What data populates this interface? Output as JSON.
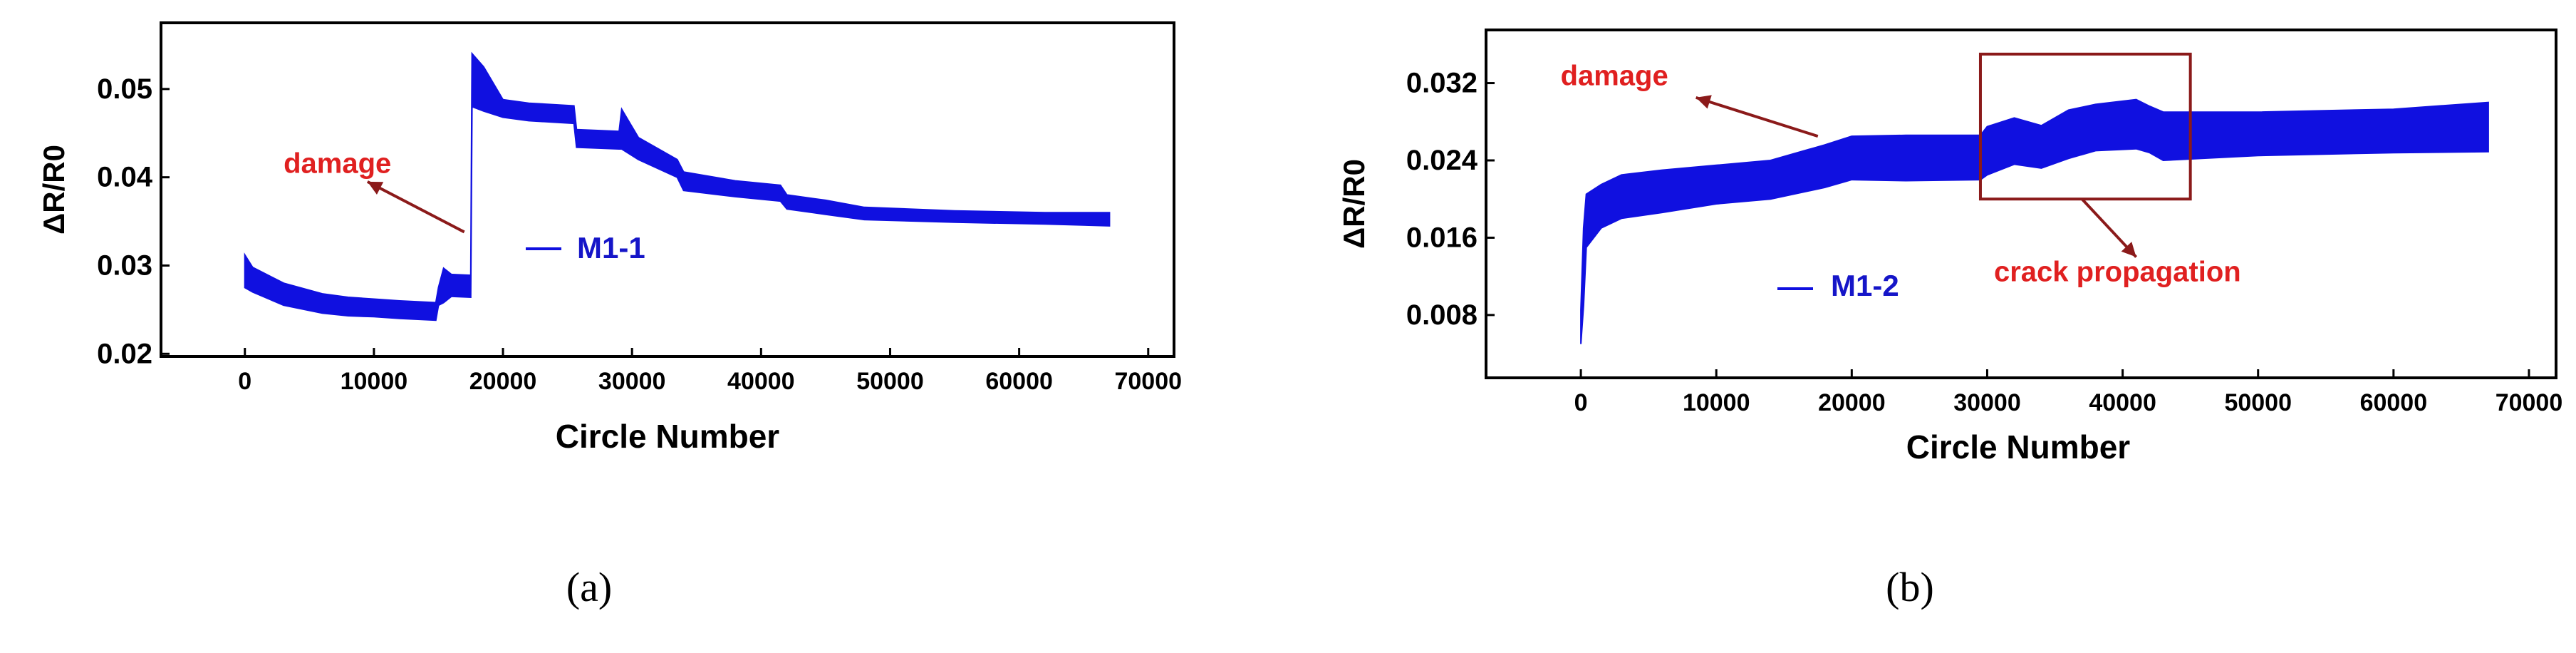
{
  "chart_data": [
    {
      "type": "line",
      "panel_label": "(a)",
      "xlabel": "Circle Number",
      "ylabel": "ΔR/R0",
      "xlim": [
        -6500,
        72000
      ],
      "ylim": [
        0.0197,
        0.0575
      ],
      "x_ticks": [
        0,
        10000,
        20000,
        30000,
        40000,
        50000,
        60000,
        70000
      ],
      "y_ticks": [
        0.02,
        0.03,
        0.04,
        0.05
      ],
      "y_tick_labels": [
        "0.02",
        "0.03",
        "0.04",
        "0.05"
      ],
      "grid": false,
      "legend": {
        "position": "center",
        "entries": [
          "M1-1"
        ]
      },
      "series": [
        {
          "name": "M1-1",
          "color": "#1010e0",
          "band": [
            [
              0,
              0.0275,
              0.0312
            ],
            [
              600,
              0.027,
              0.0298
            ],
            [
              3000,
              0.0255,
              0.028
            ],
            [
              6000,
              0.0246,
              0.0268
            ],
            [
              8000,
              0.0243,
              0.0264
            ],
            [
              10000,
              0.0242,
              0.0262
            ],
            [
              12000,
              0.024,
              0.026
            ],
            [
              14800,
              0.0238,
              0.0258
            ],
            [
              15000,
              0.0255,
              0.0275
            ],
            [
              15400,
              0.0258,
              0.0297
            ],
            [
              16000,
              0.0265,
              0.029
            ],
            [
              17500,
              0.0264,
              0.0289
            ],
            [
              17600,
              0.048,
              0.054
            ],
            [
              18500,
              0.0475,
              0.0525
            ],
            [
              20000,
              0.0468,
              0.0488
            ],
            [
              22000,
              0.0464,
              0.0484
            ],
            [
              25500,
              0.0461,
              0.0481
            ],
            [
              25700,
              0.0434,
              0.0454
            ],
            [
              29000,
              0.0432,
              0.0452
            ],
            [
              29200,
              0.0432,
              0.0477
            ],
            [
              30500,
              0.042,
              0.0445
            ],
            [
              33500,
              0.04,
              0.042
            ],
            [
              34000,
              0.0385,
              0.0406
            ],
            [
              38000,
              0.0378,
              0.0396
            ],
            [
              41500,
              0.0373,
              0.0391
            ],
            [
              42000,
              0.0364,
              0.038
            ],
            [
              45000,
              0.0358,
              0.0374
            ],
            [
              48000,
              0.0352,
              0.0366
            ],
            [
              55000,
              0.0349,
              0.0362
            ],
            [
              62000,
              0.0347,
              0.036
            ],
            [
              67000,
              0.0345,
              0.036
            ]
          ]
        }
      ],
      "annotations": [
        {
          "text": "damage",
          "x": 3000,
          "y": 0.0405,
          "color": "#e02020",
          "arrow_from": [
            17000,
            0.0338
          ],
          "arrow_to": [
            9500,
            0.0395
          ]
        }
      ]
    },
    {
      "type": "line",
      "panel_label": "(b)",
      "xlabel": "Circle Number",
      "ylabel": "ΔR/R0",
      "xlim": [
        -7000,
        72000
      ],
      "ylim": [
        0.0015,
        0.0375
      ],
      "x_ticks": [
        0,
        10000,
        20000,
        30000,
        40000,
        50000,
        60000,
        70000
      ],
      "y_ticks": [
        0.008,
        0.016,
        0.024,
        0.032
      ],
      "y_tick_labels": [
        "0.008",
        "0.016",
        "0.024",
        "0.032"
      ],
      "grid": false,
      "legend": {
        "position": "center-left",
        "entries": [
          "M1-2"
        ]
      },
      "series": [
        {
          "name": "M1-2",
          "color": "#1010e0",
          "band": [
            [
              0,
              0.005,
              0.0085
            ],
            [
              200,
              0.009,
              0.017
            ],
            [
              400,
              0.015,
              0.0205
            ],
            [
              1500,
              0.017,
              0.0215
            ],
            [
              3000,
              0.018,
              0.0225
            ],
            [
              6000,
              0.0186,
              0.023
            ],
            [
              10000,
              0.0195,
              0.0235
            ],
            [
              14000,
              0.02,
              0.024
            ],
            [
              18000,
              0.0212,
              0.0256
            ],
            [
              20000,
              0.022,
              0.0265
            ],
            [
              24000,
              0.0219,
              0.0266
            ],
            [
              29500,
              0.022,
              0.0266
            ],
            [
              30000,
              0.0225,
              0.0275
            ],
            [
              32000,
              0.0236,
              0.0284
            ],
            [
              34000,
              0.0232,
              0.0276
            ],
            [
              36000,
              0.0242,
              0.0292
            ],
            [
              38000,
              0.025,
              0.0298
            ],
            [
              41000,
              0.0252,
              0.0303
            ],
            [
              42000,
              0.0248,
              0.0296
            ],
            [
              43000,
              0.024,
              0.029
            ],
            [
              50000,
              0.0245,
              0.029
            ],
            [
              60000,
              0.0248,
              0.0293
            ],
            [
              67000,
              0.0249,
              0.03
            ]
          ]
        }
      ],
      "annotations": [
        {
          "text": "damage",
          "x": -1500,
          "y": 0.0318,
          "color": "#e02020",
          "arrow_from": [
            17500,
            0.0265
          ],
          "arrow_to": [
            8500,
            0.0305
          ]
        },
        {
          "text": "crack propagation",
          "x": 30500,
          "y": 0.0115,
          "color": "#e02020",
          "arrow_from": [
            37000,
            0.02
          ],
          "arrow_to": [
            41000,
            0.014
          ]
        }
      ],
      "highlight_box": {
        "x0": 29500,
        "x1": 45000,
        "y0": 0.02,
        "y1": 0.035,
        "color": "#8b1a1a"
      }
    }
  ]
}
